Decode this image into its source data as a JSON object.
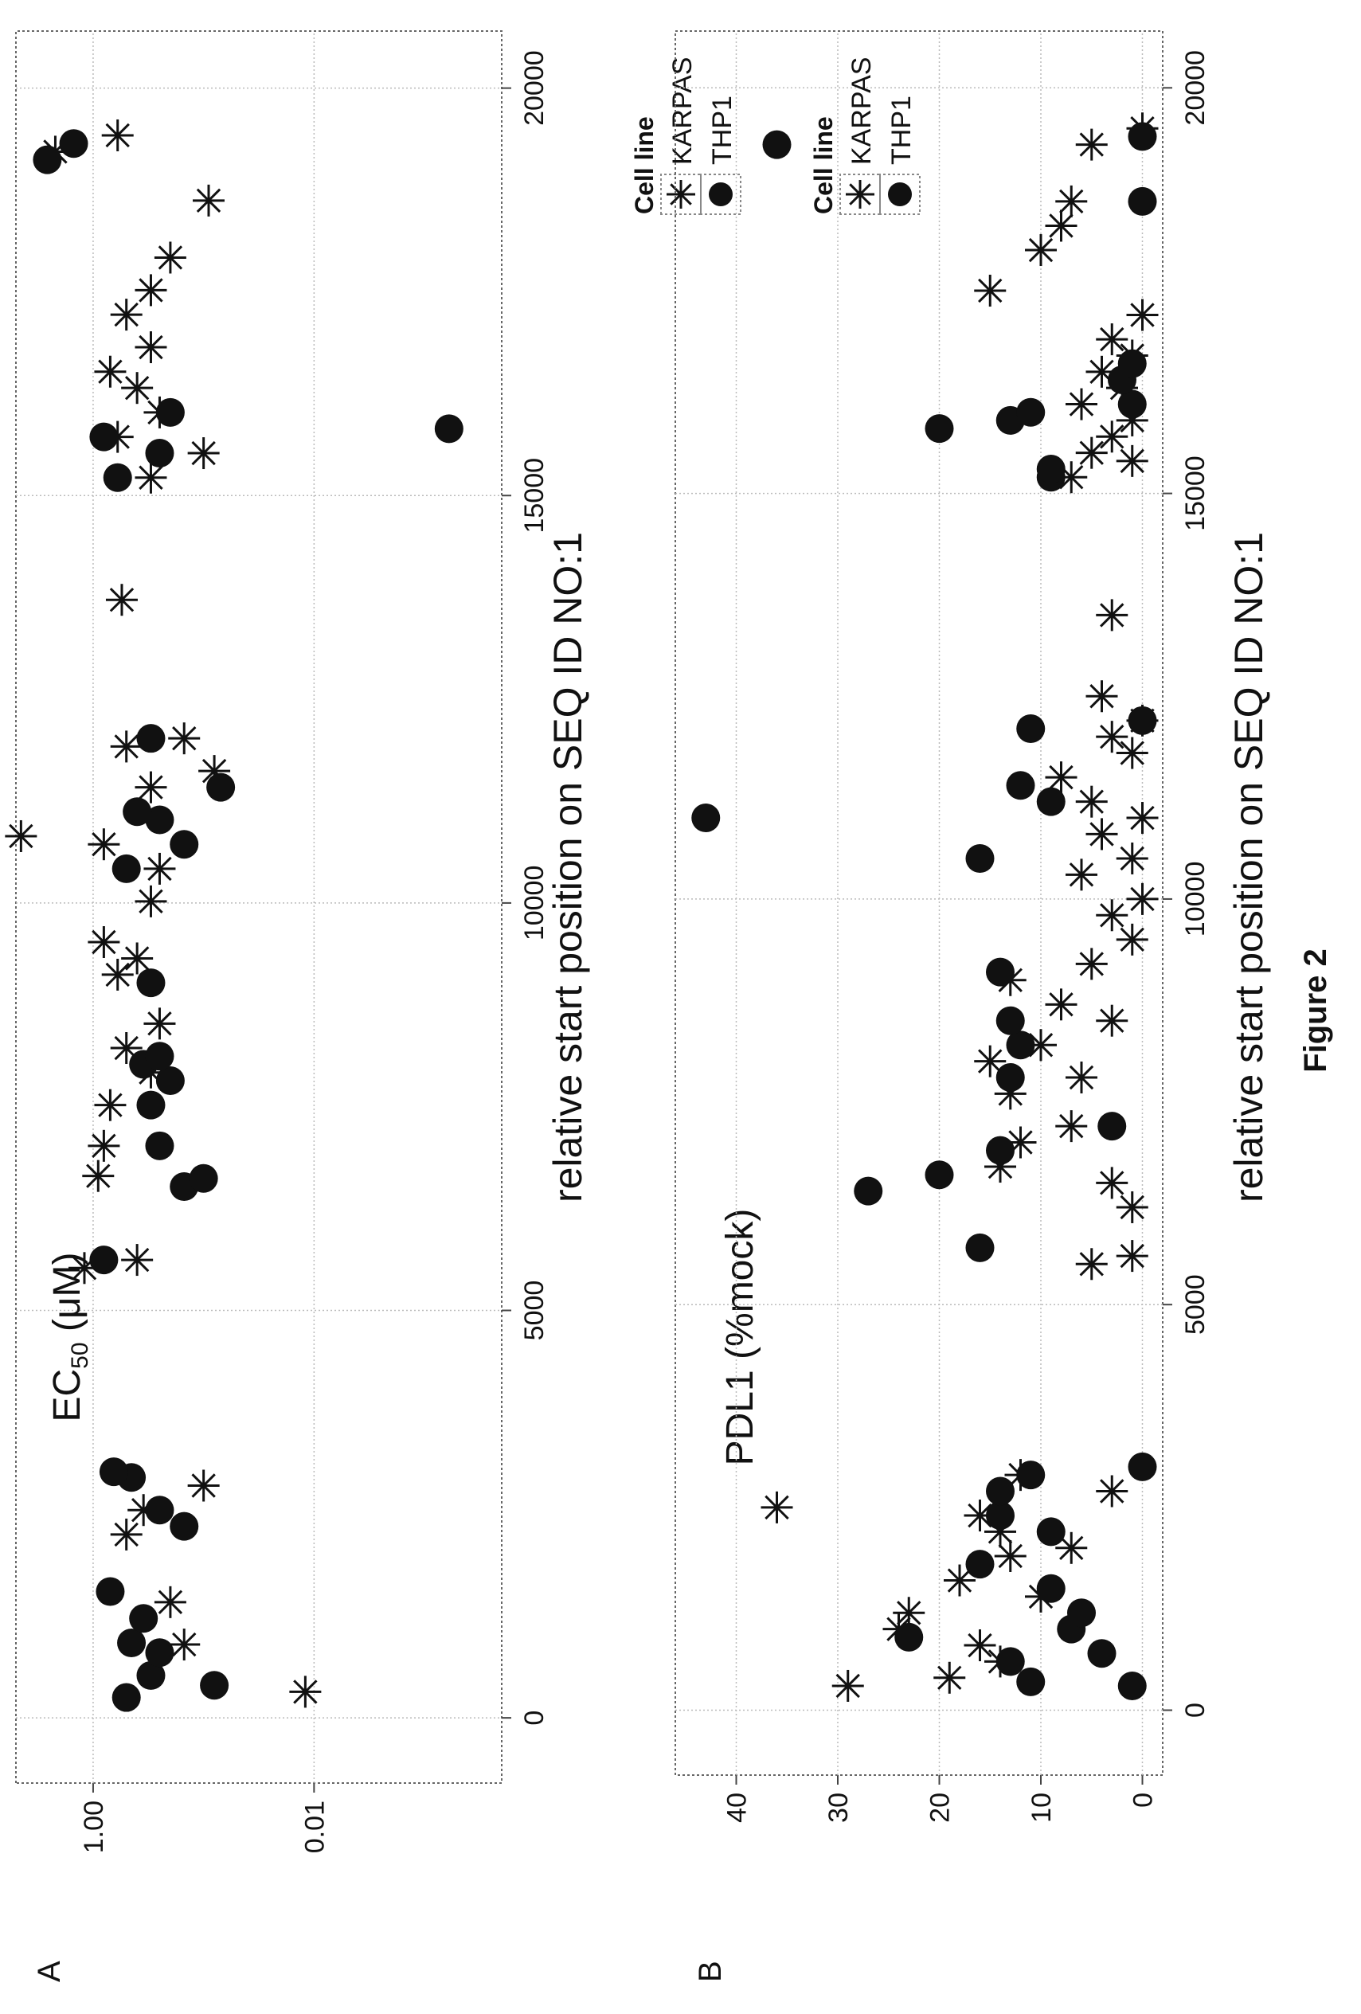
{
  "figure_caption": "Figure 2",
  "charts": [
    {
      "panel_label": "A",
      "ylabel_main": "EC",
      "ylabel_sub": "50",
      "ylabel_unit": " (μM)",
      "xlabel": "relative start position on SEQ ID NO:1",
      "xtick_labels": [
        "0",
        "5000",
        "10000",
        "15000",
        "20000"
      ],
      "ytick_labels": [
        "1.00",
        "0.01"
      ],
      "legend": {
        "title": "Cell line",
        "entries": [
          "KARPAS",
          "THP1"
        ]
      }
    },
    {
      "panel_label": "B",
      "ylabel": "PDL1 (%mock)",
      "xlabel": "relative start position on SEQ ID NO:1",
      "xtick_labels": [
        "0",
        "5000",
        "10000",
        "15000",
        "20000"
      ],
      "ytick_labels": [
        "0",
        "10",
        "20",
        "30",
        "40"
      ],
      "legend": {
        "title": "Cell line",
        "entries": [
          "KARPAS",
          "THP1"
        ]
      }
    }
  ],
  "chart_data": [
    {
      "type": "scatter",
      "xlabel": "relative start position on SEQ ID NO:1",
      "ylabel": "EC50 (μM)",
      "yscale": "log",
      "xlim": [
        -800,
        20700
      ],
      "ylim": [
        0.0002,
        5
      ],
      "xticks": [
        0,
        5000,
        10000,
        15000,
        20000
      ],
      "yticks": [
        1.0,
        0.01
      ],
      "grid": true,
      "legend_position": "right",
      "series": [
        {
          "name": "KARPAS",
          "marker": "asterisk",
          "x": [
            320,
            900,
            1420,
            2250,
            2550,
            2850,
            5520,
            5620,
            6650,
            7020,
            7520,
            7920,
            8220,
            8520,
            9120,
            9320,
            9520,
            10020,
            10420,
            10720,
            10820,
            11420,
            11620,
            11920,
            12020,
            13720,
            15220,
            15520,
            15720,
            16020,
            16320,
            16520,
            16820,
            17220,
            17520,
            17920,
            18620,
            19220,
            19420
          ],
          "y": [
            0.012,
            0.15,
            0.2,
            0.5,
            0.35,
            0.1,
            1.2,
            0.4,
            0.9,
            0.8,
            0.7,
            0.3,
            0.5,
            0.25,
            0.6,
            0.4,
            0.8,
            0.3,
            0.25,
            0.8,
            4.5,
            0.3,
            0.08,
            0.5,
            0.15,
            0.55,
            0.3,
            0.1,
            0.6,
            0.25,
            0.4,
            0.7,
            0.3,
            0.5,
            0.3,
            0.2,
            0.09,
            2.2,
            0.6
          ]
        },
        {
          "name": "THP1",
          "marker": "filled-circle",
          "x": [
            250,
            400,
            520,
            800,
            920,
            1220,
            1550,
            2350,
            2550,
            2950,
            3020,
            5620,
            6520,
            6620,
            7020,
            7520,
            7820,
            8020,
            8120,
            9020,
            10420,
            10720,
            11020,
            11120,
            11420,
            12020,
            15220,
            15520,
            15720,
            15820,
            16020,
            19120,
            19320
          ],
          "y": [
            0.5,
            0.08,
            0.3,
            0.25,
            0.45,
            0.35,
            0.7,
            0.15,
            0.25,
            0.45,
            0.65,
            0.8,
            0.15,
            0.1,
            0.25,
            0.3,
            0.2,
            0.35,
            0.25,
            0.3,
            0.5,
            0.15,
            0.25,
            0.4,
            0.07,
            0.3,
            0.6,
            0.25,
            0.8,
            0.0006,
            0.2,
            2.6,
            1.5
          ]
        }
      ]
    },
    {
      "type": "scatter",
      "xlabel": "relative start position on SEQ ID NO:1",
      "ylabel": "PDL1 (%mock)",
      "xlim": [
        -800,
        20700
      ],
      "ylim": [
        -2,
        46
      ],
      "xticks": [
        0,
        5000,
        10000,
        15000,
        20000
      ],
      "yticks": [
        0,
        10,
        20,
        30,
        40
      ],
      "grid": true,
      "legend_position": "right",
      "series": [
        {
          "name": "KARPAS",
          "marker": "asterisk",
          "x": [
            300,
            400,
            600,
            800,
            1000,
            1200,
            1400,
            1600,
            1900,
            2000,
            2200,
            2400,
            2500,
            2700,
            2900,
            5500,
            5600,
            6200,
            6500,
            6700,
            7000,
            7200,
            7600,
            7800,
            8000,
            8200,
            8500,
            8700,
            9000,
            9200,
            9500,
            9800,
            10000,
            10300,
            10500,
            10800,
            11000,
            11200,
            11500,
            11800,
            12000,
            12200,
            12500,
            13500,
            15200,
            15400,
            15500,
            15700,
            15900,
            16100,
            16300,
            16500,
            16700,
            16900,
            17200,
            17500,
            18000,
            18300,
            18600,
            19300,
            19500
          ],
          "y": [
            29,
            19,
            14,
            16,
            24,
            23,
            10,
            18,
            13,
            7,
            14,
            16,
            36,
            3,
            12,
            5,
            1,
            1,
            3,
            14,
            12,
            7,
            13,
            6,
            15,
            10,
            3,
            8,
            13,
            5,
            1,
            3,
            0,
            6,
            1,
            4,
            0,
            5,
            8,
            1,
            3,
            0,
            4,
            3,
            7,
            1,
            5,
            3,
            1,
            6,
            2,
            4,
            1,
            3,
            0,
            15,
            10,
            8,
            7,
            5,
            0
          ]
        },
        {
          "name": "THP1",
          "marker": "filled-circle",
          "x": [
            300,
            350,
            600,
            700,
            900,
            1000,
            1200,
            1500,
            1800,
            2200,
            2400,
            2700,
            2900,
            3000,
            5700,
            6400,
            6600,
            6900,
            7200,
            7800,
            8200,
            8500,
            9100,
            10500,
            11000,
            11200,
            11400,
            12100,
            12200,
            15200,
            15300,
            15800,
            15900,
            16000,
            16100,
            16400,
            16600,
            18600,
            19300,
            19400
          ],
          "y": [
            1,
            11,
            13,
            4,
            23,
            7,
            6,
            9,
            16,
            9,
            14,
            14,
            11,
            0,
            16,
            27,
            20,
            14,
            3,
            13,
            12,
            13,
            14,
            16,
            43,
            9,
            12,
            11,
            0,
            9,
            9,
            20,
            13,
            11,
            1,
            2,
            1,
            0,
            36,
            0
          ]
        }
      ]
    }
  ]
}
